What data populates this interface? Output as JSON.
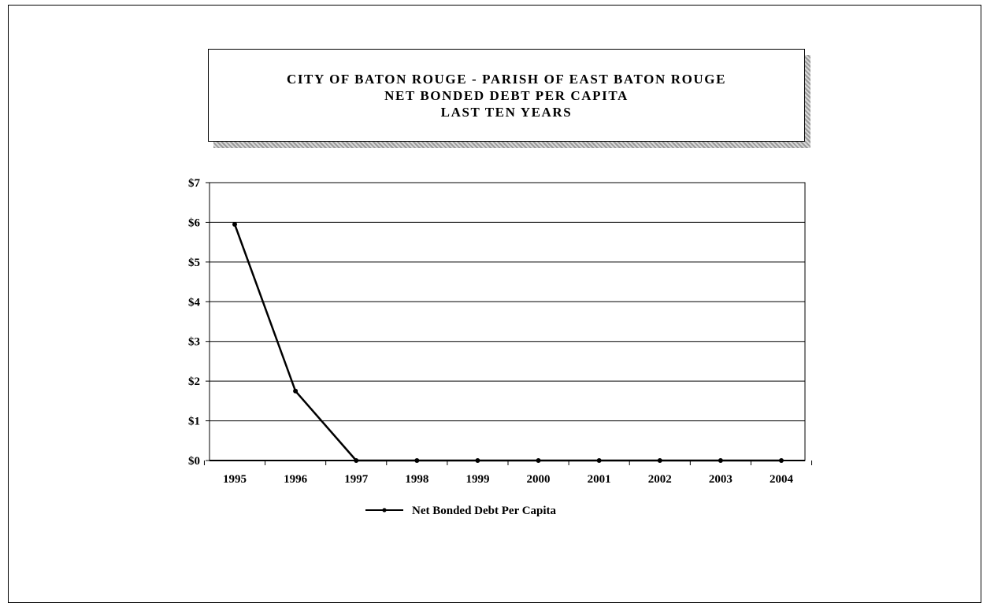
{
  "title_lines": [
    "CITY OF BATON ROUGE - PARISH OF EAST BATON ROUGE",
    "NET BONDED DEBT PER CAPITA",
    "LAST TEN YEARS"
  ],
  "chart_data": {
    "type": "line",
    "title": "CITY OF BATON ROUGE - PARISH OF EAST BATON ROUGE NET BONDED DEBT PER CAPITA LAST TEN YEARS",
    "xlabel": "",
    "ylabel": "",
    "categories": [
      "1995",
      "1996",
      "1997",
      "1998",
      "1999",
      "2000",
      "2001",
      "2002",
      "2003",
      "2004"
    ],
    "series": [
      {
        "name": "Net Bonded Debt Per Capita",
        "values": [
          5.95,
          1.75,
          0,
          0,
          0,
          0,
          0,
          0,
          0,
          0
        ]
      }
    ],
    "ylim": [
      0,
      7
    ],
    "yticks": [
      0,
      1,
      2,
      3,
      4,
      5,
      6,
      7
    ],
    "ytick_labels": [
      "$0",
      "$1",
      "$2",
      "$3",
      "$4",
      "$5",
      "$6",
      "$7"
    ],
    "grid": true,
    "legend_placement": "bottom",
    "line_color": "#000000"
  }
}
